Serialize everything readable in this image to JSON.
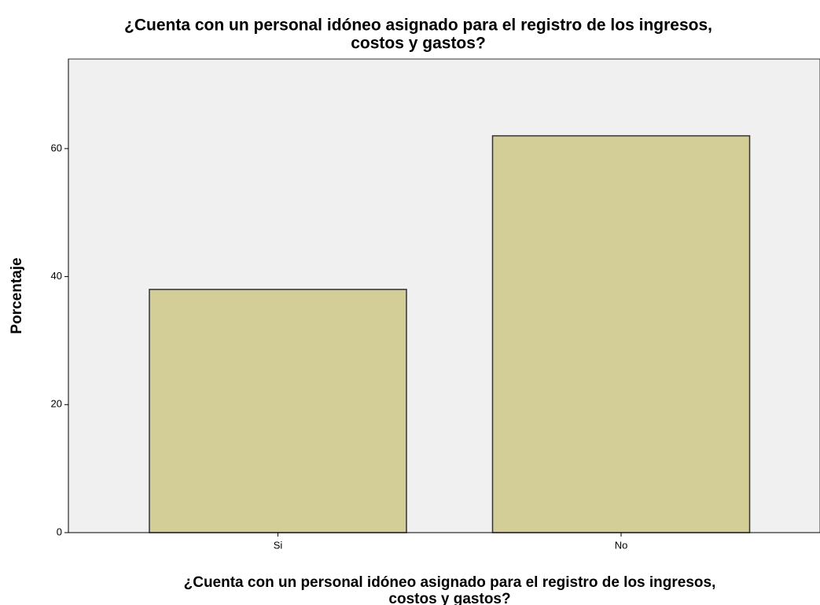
{
  "chart_data": {
    "type": "bar",
    "title": [
      "¿Cuenta con un personal idóneo asignado para el registro de los ingresos,",
      "costos y gastos?"
    ],
    "x_label": [
      "¿Cuenta con un personal idóneo asignado para el registro de los ingresos,",
      "costos y gastos?"
    ],
    "y_label": "Porcentaje",
    "categories": [
      "Si",
      "No"
    ],
    "values": [
      38,
      62
    ],
    "color": "#d3ce97",
    "ylim": [
      0,
      74
    ],
    "yticks": [
      0,
      20,
      40,
      60
    ],
    "grid": false
  }
}
